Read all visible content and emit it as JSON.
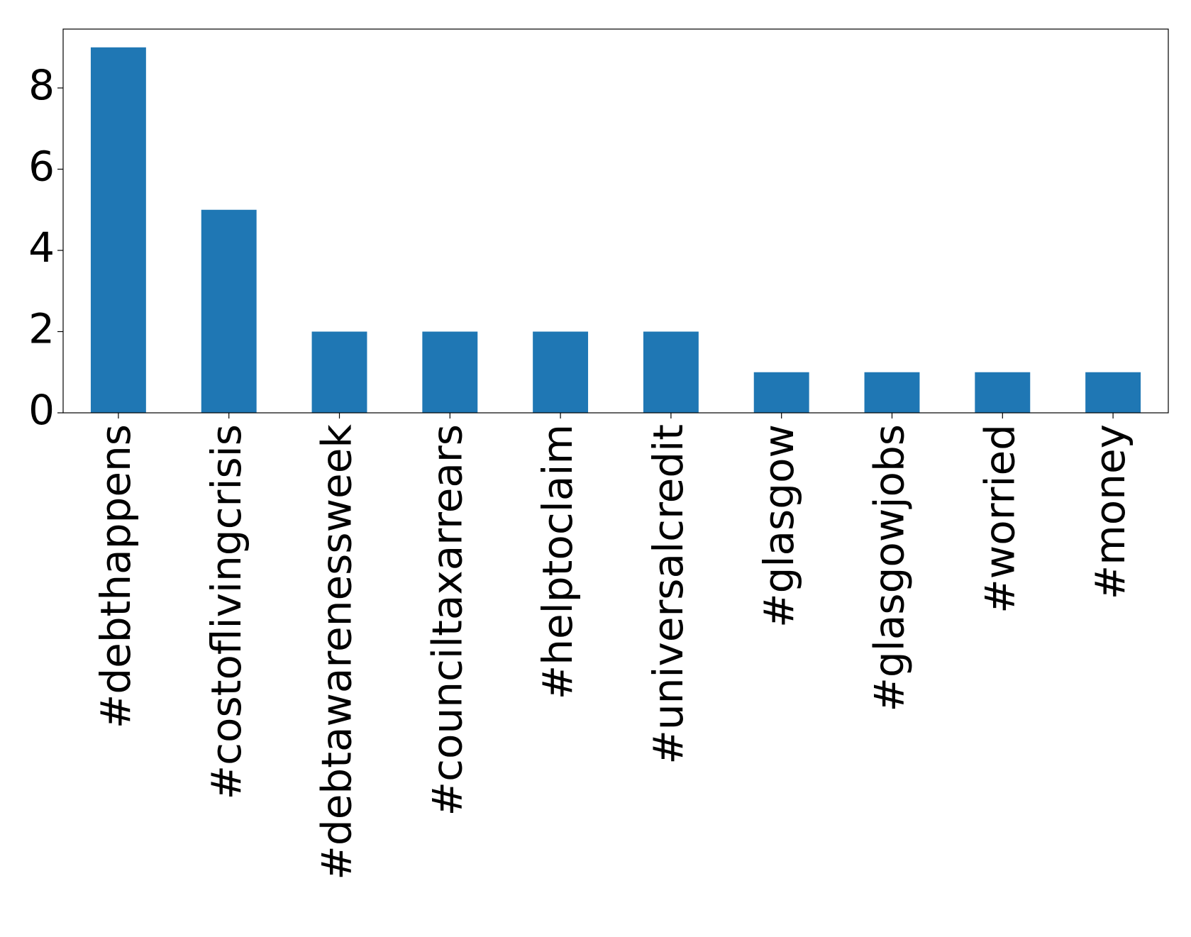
{
  "chart_data": {
    "type": "bar",
    "categories": [
      "#debthappens",
      "#costoflivingcrisis",
      "#debtawarenessweek",
      "#counciltaxarrears",
      "#helptoclaim",
      "#universalcredit",
      "#glasgow",
      "#glasgowjobs",
      "#worried",
      "#money"
    ],
    "values": [
      9,
      5,
      2,
      2,
      2,
      2,
      1,
      1,
      1,
      1
    ],
    "color": "#1f77b4",
    "ylim": [
      0,
      9.45
    ],
    "yticks": [
      0,
      2,
      4,
      6,
      8
    ]
  }
}
